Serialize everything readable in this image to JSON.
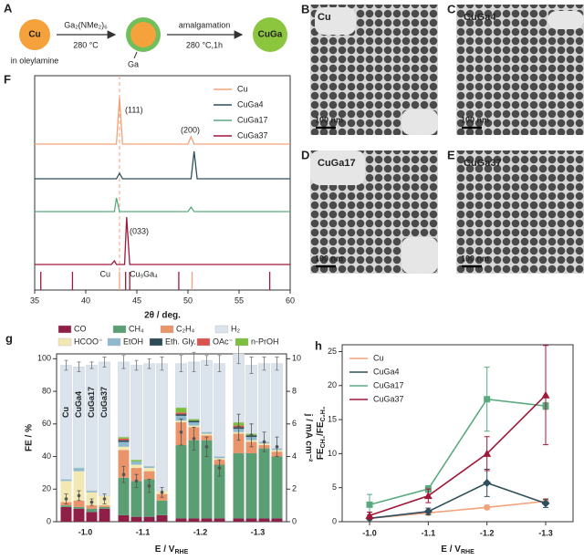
{
  "scheme": {
    "label": "A",
    "start": "Cu",
    "solvent": "in oleylamine",
    "step1_reagent": "Ga₂(NMe₂)₆",
    "step1_condition": "280 °C",
    "shell": "Ga",
    "step2": "amalgamation",
    "step2_condition": "280 °C,1h",
    "product": "CuGa"
  },
  "micrographs": [
    {
      "label": "B",
      "sample": "Cu",
      "scale": "100 nm"
    },
    {
      "label": "C",
      "sample": "CuGa4",
      "scale": "100 nm"
    },
    {
      "label": "D",
      "sample": "CuGa17",
      "scale": "100 nm"
    },
    {
      "label": "E",
      "sample": "CuGa37",
      "scale": "100 nm"
    }
  ],
  "chart_data": [
    {
      "type": "line",
      "panel": "F",
      "xlabel": "2θ / deg.",
      "x": [
        35,
        42.5,
        42.8,
        43.0,
        43.3,
        43.6,
        43.8,
        44.0,
        44.3,
        50.0,
        50.3,
        50.6,
        50.9,
        60
      ],
      "xlim": [
        35,
        60
      ],
      "xticks": [
        35,
        40,
        45,
        50,
        55,
        60
      ],
      "ylim": [
        0,
        100
      ],
      "legend": "upper right",
      "series": [
        {
          "name": "Cu",
          "color": "#f2a27a",
          "values": [
            68.1,
            68.1,
            68.1,
            68.1,
            89.8,
            68.1,
            68.1,
            68.1,
            68.1,
            68.1,
            71.5,
            68.1,
            68.1,
            68.1
          ]
        },
        {
          "name": "CuGa4",
          "color": "#2f4f5c",
          "values": [
            51.9,
            51.9,
            51.9,
            51.9,
            54.5,
            51.9,
            51.9,
            51.9,
            51.9,
            51.9,
            51.9,
            64.7,
            51.9,
            51.9
          ]
        },
        {
          "name": "CuGa17",
          "color": "#5aaa80",
          "values": [
            36.6,
            36.6,
            36.6,
            43.0,
            36.6,
            36.6,
            36.6,
            36.6,
            36.6,
            36.6,
            38.7,
            36.6,
            36.6,
            36.6
          ]
        },
        {
          "name": "CuGa37",
          "color": "#a0173a",
          "values": [
            11.9,
            11.9,
            13.6,
            11.9,
            11.9,
            11.9,
            11.9,
            34.0,
            11.9,
            11.9,
            11.9,
            11.9,
            11.9,
            11.9
          ]
        }
      ],
      "marker_x": 43.3,
      "annotations": [
        "(111)",
        "(200)",
        "(033)"
      ],
      "references": [
        {
          "name": "Cu",
          "color": "#f2a27a",
          "positions": [
            43.3,
            50.4
          ]
        },
        {
          "name": "Cu₉Ga₄",
          "color": "#a0173a",
          "positions": [
            35.6,
            38.7,
            43.9,
            44.3,
            49.1,
            58.0
          ]
        }
      ]
    },
    {
      "type": "bar",
      "panel": "g",
      "stacked": true,
      "groups": [
        "-1.0",
        "-1.1",
        "-1.2",
        "-1.3"
      ],
      "bar_labels": [
        "Cu",
        "CuGa4",
        "CuGa17",
        "CuGa37"
      ],
      "xlabel": [
        "E / V",
        "RHE"
      ],
      "ylabel": "FE / %",
      "y2label": "j / mA cm⁻²",
      "ylim": [
        0,
        103
      ],
      "yticks": [
        0,
        20,
        40,
        60,
        80,
        100
      ],
      "y2lim": [
        0,
        10.3
      ],
      "y2ticks": [
        0,
        2,
        4,
        6,
        8,
        10
      ],
      "series": [
        {
          "name": "CO",
          "color": "#8e1f47",
          "values": [
            [
              9,
              8,
              6,
              8
            ],
            [
              4,
              3,
              3,
              4
            ],
            [
              2,
              2,
              2,
              2
            ],
            [
              2,
              2,
              2,
              2
            ]
          ]
        },
        {
          "name": "CH₄",
          "color": "#5a9e73",
          "values": [
            [
              1,
              1,
              2,
              1
            ],
            [
              23,
              22,
              23,
              9
            ],
            [
              45,
              48,
              48,
              33
            ],
            [
              40,
              40,
              43,
              38
            ]
          ]
        },
        {
          "name": "C₂H₄",
          "color": "#e9946b",
          "values": [
            [
              2,
              4,
              2,
              1
            ],
            [
              17,
              8,
              5,
              4
            ],
            [
              14,
              8,
              3,
              3
            ],
            [
              12,
              7,
              2,
              3
            ]
          ]
        },
        {
          "name": "HCOO⁻",
          "color": "#f1e8b4",
          "values": [
            [
              13,
              18,
              8,
              6
            ],
            [
              2,
              2,
              2,
              2
            ],
            [
              1,
              1,
              1,
              1
            ],
            [
              1,
              1,
              1,
              1
            ]
          ]
        },
        {
          "name": "EtOH",
          "color": "#8fb9cc",
          "values": [
            [
              1,
              2,
              1,
              0
            ],
            [
              3,
              2,
              1,
              0
            ],
            [
              3,
              2,
              1,
              1
            ],
            [
              2,
              2,
              1,
              1
            ]
          ]
        },
        {
          "name": "Eth. Gly.",
          "color": "#2c4a57",
          "values": [
            [
              0,
              0,
              0,
              0
            ],
            [
              1,
              0,
              0,
              0
            ],
            [
              1,
              1,
              0,
              0
            ],
            [
              1,
              1,
              0,
              0
            ]
          ]
        },
        {
          "name": "OAc⁻",
          "color": "#d9534f",
          "values": [
            [
              0,
              0,
              0,
              0
            ],
            [
              1,
              0,
              0,
              0
            ],
            [
              1,
              0,
              0,
              0
            ],
            [
              1,
              0,
              0,
              0
            ]
          ]
        },
        {
          "name": "n-PrOH",
          "color": "#7cbf3f",
          "values": [
            [
              0,
              0,
              0,
              0
            ],
            [
              1,
              1,
              0,
              0
            ],
            [
              3,
              1,
              0,
              0
            ],
            [
              2,
              1,
              0,
              0
            ]
          ]
        },
        {
          "name": "H₂",
          "color": "#dbe4ec",
          "values": [
            [
              70,
              62,
              77,
              82
            ],
            [
              46,
              58,
              63,
              78
            ],
            [
              27,
              35,
              44,
              57
            ],
            [
              42,
              42,
              48,
              52
            ]
          ],
          "errors": [
            [
              3,
              3,
              2,
              3
            ],
            [
              4,
              3,
              3,
              4
            ],
            [
              5,
              6,
              3,
              5
            ],
            [
              6,
              5,
              4,
              4
            ]
          ]
        },
        {
          "axis": "y2",
          "color": "#555555",
          "values": [
            [
              1.4,
              1.6,
              1.2,
              1.4
            ],
            [
              2.9,
              2.5,
              2.2,
              1.8
            ],
            [
              5.5,
              5.1,
              4.6,
              3.3
            ],
            [
              5.8,
              5.3,
              4.9,
              4.6
            ]
          ],
          "errors": [
            [
              0.3,
              0.3,
              0.2,
              0.3
            ],
            [
              0.5,
              0.4,
              0.4,
              0.3
            ],
            [
              0.8,
              0.7,
              0.6,
              0.5
            ],
            [
              0.8,
              0.7,
              0.6,
              0.6
            ]
          ]
        }
      ]
    },
    {
      "type": "line",
      "panel": "h",
      "categories": [
        "-1.0",
        "-1.1",
        "-1.2",
        "-1.3"
      ],
      "xlabel": [
        "E / V",
        "RHE"
      ],
      "ylabel": [
        "FE",
        "CH₄",
        "/FE",
        "C₂H₄"
      ],
      "ylim": [
        0,
        26
      ],
      "yticks": [
        0,
        5,
        10,
        15,
        20,
        25
      ],
      "legend": "upper left",
      "series": [
        {
          "name": "Cu",
          "color": "#f2a27a",
          "marker": "circle",
          "values": [
            0.5,
            1.3,
            2.1,
            3.0
          ],
          "errors": [
            0.2,
            0.3,
            0.3,
            0.4
          ]
        },
        {
          "name": "CuGa4",
          "color": "#2f4f5c",
          "marker": "diamond",
          "values": [
            0.5,
            1.5,
            5.7,
            2.7
          ],
          "errors": [
            0.2,
            0.5,
            2.0,
            0.6
          ]
        },
        {
          "name": "CuGa17",
          "color": "#5aaa80",
          "marker": "square",
          "values": [
            2.5,
            4.8,
            18.0,
            17.0
          ],
          "errors": [
            1.5,
            0.5,
            4.7,
            0.5
          ]
        },
        {
          "name": "CuGa37",
          "color": "#a0173a",
          "marker": "triangle",
          "values": [
            0.9,
            3.8,
            10.0,
            18.6
          ],
          "errors": [
            0.5,
            1.0,
            2.5,
            7.3
          ]
        }
      ]
    }
  ]
}
